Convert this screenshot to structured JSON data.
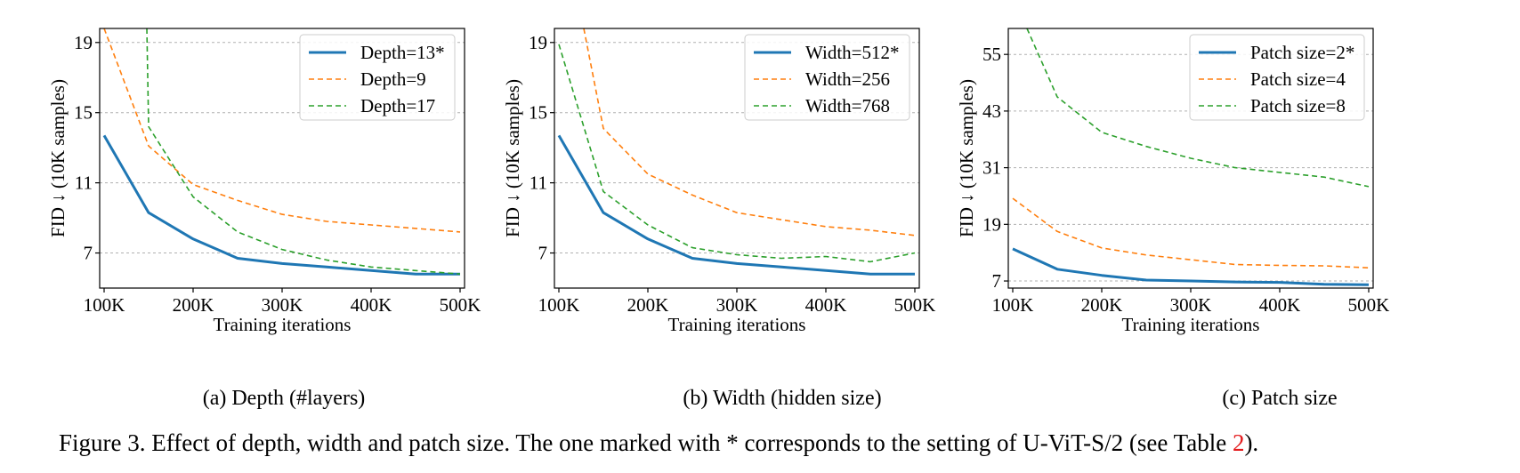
{
  "figure": {
    "caption_text": "Figure 3. Effect of depth, width and patch size. The one marked with * corresponds to the setting of U-ViT-S/2 (see Table ",
    "caption_ref": "2",
    "caption_end": ")."
  },
  "colors": {
    "blue": "#1f77b4",
    "orange": "#ff7f0e",
    "green": "#2ca02c",
    "grid": "#b0b0b0",
    "ref": "#e41a1c"
  },
  "chart_data": [
    {
      "type": "line",
      "subcaption": "(a) Depth (#layers)",
      "xlabel": "Training iterations",
      "ylabel": "FID ↓ (10K samples)",
      "x_ticks": [
        "100K",
        "200K",
        "300K",
        "400K",
        "500K"
      ],
      "y_ticks": [
        7,
        11,
        15,
        19
      ],
      "xlim": [
        95000,
        505000
      ],
      "ylim": [
        5.0,
        19.8
      ],
      "grid": "horizontal dashed",
      "legend_position": "top-right",
      "series": [
        {
          "name": "Depth=13*",
          "style": "solid",
          "color": "#1f77b4",
          "x": [
            100000,
            150000,
            200000,
            250000,
            300000,
            350000,
            400000,
            450000,
            500000
          ],
          "y": [
            13.7,
            9.3,
            7.8,
            6.7,
            6.4,
            6.2,
            6.0,
            5.8,
            5.8
          ]
        },
        {
          "name": "Depth=9",
          "style": "dashed",
          "color": "#ff7f0e",
          "x": [
            100000,
            150000,
            200000,
            250000,
            300000,
            350000,
            400000,
            450000,
            500000
          ],
          "y": [
            19.8,
            13.1,
            10.9,
            10.0,
            9.2,
            8.8,
            8.6,
            8.4,
            8.2
          ]
        },
        {
          "name": "Depth=17",
          "style": "dashed",
          "color": "#2ca02c",
          "x": [
            148000,
            150000,
            200000,
            250000,
            300000,
            350000,
            400000,
            450000,
            500000
          ],
          "y": [
            19.8,
            14.2,
            10.2,
            8.2,
            7.2,
            6.6,
            6.2,
            6.0,
            5.8
          ]
        }
      ]
    },
    {
      "type": "line",
      "subcaption": "(b) Width (hidden size)",
      "xlabel": "Training iterations",
      "ylabel": "FID ↓ (10K samples)",
      "x_ticks": [
        "100K",
        "200K",
        "300K",
        "400K",
        "500K"
      ],
      "y_ticks": [
        7,
        11,
        15,
        19
      ],
      "xlim": [
        95000,
        505000
      ],
      "ylim": [
        5.0,
        19.8
      ],
      "grid": "horizontal dashed",
      "legend_position": "top-right",
      "series": [
        {
          "name": "Width=512*",
          "style": "solid",
          "color": "#1f77b4",
          "x": [
            100000,
            150000,
            200000,
            250000,
            300000,
            350000,
            400000,
            450000,
            500000
          ],
          "y": [
            13.7,
            9.3,
            7.8,
            6.7,
            6.4,
            6.2,
            6.0,
            5.8,
            5.8
          ]
        },
        {
          "name": "Width=256",
          "style": "dashed",
          "color": "#ff7f0e",
          "x": [
            128000,
            150000,
            200000,
            250000,
            300000,
            350000,
            400000,
            450000,
            500000
          ],
          "y": [
            19.8,
            14.1,
            11.5,
            10.3,
            9.3,
            8.9,
            8.5,
            8.3,
            8.0
          ]
        },
        {
          "name": "Width=768",
          "style": "dashed",
          "color": "#2ca02c",
          "x": [
            100000,
            150000,
            200000,
            250000,
            300000,
            350000,
            400000,
            450000,
            500000
          ],
          "y": [
            18.9,
            10.5,
            8.6,
            7.3,
            6.9,
            6.7,
            6.8,
            6.5,
            7.0
          ]
        }
      ]
    },
    {
      "type": "line",
      "subcaption": "(c) Patch size",
      "xlabel": "Training iterations",
      "ylabel": "FID ↓ (10K samples)",
      "x_ticks": [
        "100K",
        "200K",
        "300K",
        "400K",
        "500K"
      ],
      "y_ticks": [
        7,
        19,
        31,
        43,
        55
      ],
      "xlim": [
        95000,
        505000
      ],
      "ylim": [
        5.5,
        60.5
      ],
      "grid": "horizontal dashed",
      "legend_position": "top-right",
      "series": [
        {
          "name": "Patch size=2*",
          "style": "solid",
          "color": "#1f77b4",
          "x": [
            100000,
            150000,
            200000,
            250000,
            300000,
            350000,
            400000,
            450000,
            500000
          ],
          "y": [
            13.8,
            9.5,
            8.2,
            7.2,
            7.0,
            6.8,
            6.7,
            6.3,
            6.2
          ]
        },
        {
          "name": "Patch size=4",
          "style": "dashed",
          "color": "#ff7f0e",
          "x": [
            100000,
            150000,
            200000,
            250000,
            300000,
            350000,
            400000,
            450000,
            500000
          ],
          "y": [
            24.5,
            17.5,
            14.0,
            12.5,
            11.5,
            10.5,
            10.3,
            10.2,
            9.8
          ]
        },
        {
          "name": "Patch size=8",
          "style": "dashed",
          "color": "#2ca02c",
          "x": [
            116000,
            150000,
            200000,
            250000,
            300000,
            350000,
            400000,
            450000,
            500000
          ],
          "y": [
            60.5,
            46.0,
            38.5,
            35.5,
            33.0,
            31.0,
            30.0,
            29.0,
            27.0
          ]
        }
      ]
    }
  ]
}
